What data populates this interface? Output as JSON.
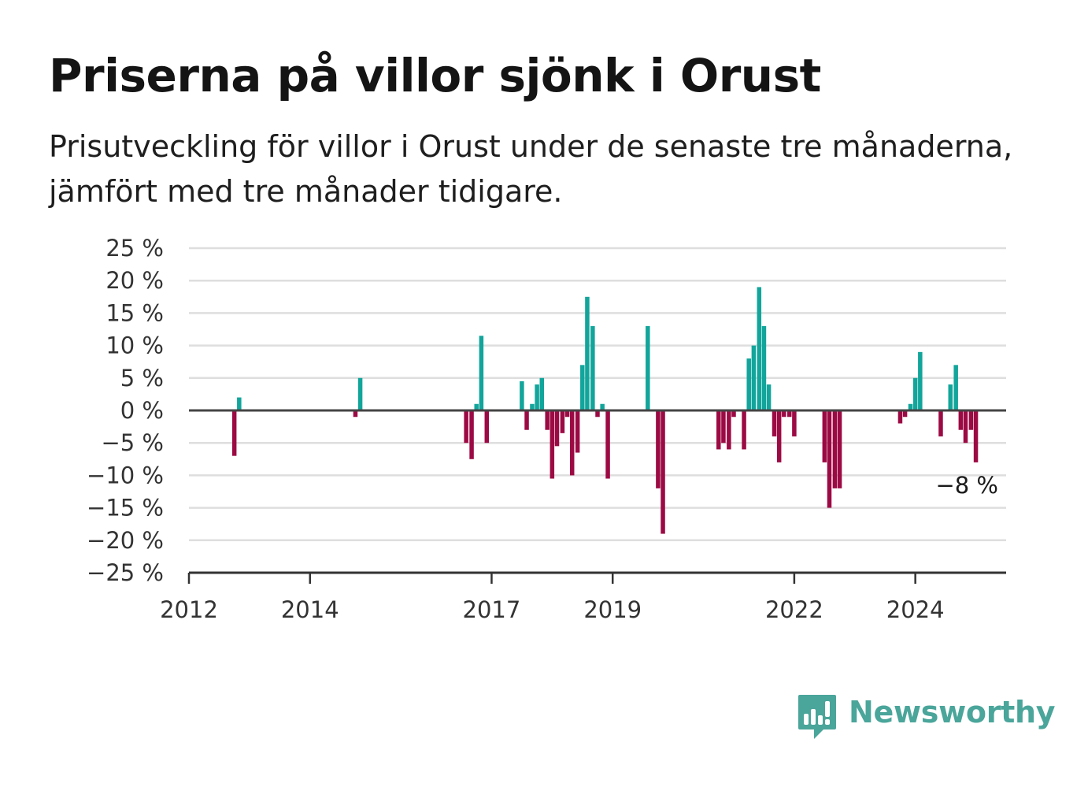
{
  "title": "Priserna på villor sjönk i Orust",
  "subtitle": "Prisutveckling för villor i Orust under de senaste tre månaderna, jämfört med tre månader tidigare.",
  "brand": {
    "name": "Newsworthy",
    "icon": "bar-chart-speech-bubble-icon",
    "color": "#4aa59a"
  },
  "colors": {
    "positive": "#12a59b",
    "negative": "#9c0a44",
    "zero_line": "#444444",
    "grid": "#dedede"
  },
  "chart_data": {
    "type": "bar",
    "title": "Priserna på villor sjönk i Orust",
    "xlabel": "",
    "ylabel": "",
    "ylim": [
      -25,
      25
    ],
    "y_ticks": [
      25,
      20,
      15,
      10,
      5,
      0,
      -5,
      -10,
      -15,
      -20,
      -25
    ],
    "y_tick_labels": [
      "25 %",
      "20 %",
      "15 %",
      "10 %",
      "5 %",
      "0 %",
      "−5 %",
      "−10 %",
      "−15 %",
      "−20 %",
      "−25 %"
    ],
    "x_ticks": [
      2012,
      2014,
      2017,
      2019,
      2022,
      2024
    ],
    "x_tick_labels": [
      "2012",
      "2014",
      "2017",
      "2019",
      "2022",
      "2024"
    ],
    "xlim": [
      2012,
      2025.5
    ],
    "grid": true,
    "annotation": "−8 %",
    "x": [
      2012.75,
      2012.83,
      2014.75,
      2014.83,
      2016.58,
      2016.67,
      2016.75,
      2016.83,
      2016.92,
      2017.5,
      2017.58,
      2017.67,
      2017.75,
      2017.83,
      2017.92,
      2018.0,
      2018.08,
      2018.17,
      2018.25,
      2018.33,
      2018.42,
      2018.5,
      2018.58,
      2018.67,
      2018.75,
      2018.83,
      2018.92,
      2019.58,
      2019.75,
      2019.83,
      2020.75,
      2020.83,
      2020.92,
      2021.0,
      2021.17,
      2021.25,
      2021.33,
      2021.42,
      2021.5,
      2021.58,
      2021.67,
      2021.75,
      2021.83,
      2021.92,
      2022.0,
      2022.5,
      2022.58,
      2022.67,
      2022.75,
      2023.75,
      2023.83,
      2023.92,
      2024.0,
      2024.08,
      2024.17,
      2024.42,
      2024.58,
      2024.67,
      2024.75,
      2024.83,
      2024.92,
      2025.0
    ],
    "values": [
      -7,
      2,
      -1,
      5,
      -5,
      -7.5,
      1,
      11.5,
      -5,
      4.5,
      -3,
      1,
      4,
      5,
      -3,
      -10.5,
      -5.5,
      -3.5,
      -1,
      -10,
      -6.5,
      7,
      17.5,
      13,
      -1,
      1,
      -10.5,
      13,
      -12,
      -19,
      -6,
      -5,
      -6,
      -1,
      -6,
      8,
      10,
      19,
      13,
      4,
      -4,
      -8,
      -1,
      -1,
      -4,
      -8,
      -15,
      -12,
      -12,
      -2,
      -1,
      1,
      5,
      9,
      0,
      -4,
      4,
      7,
      -3,
      -5,
      -3,
      -8
    ]
  }
}
